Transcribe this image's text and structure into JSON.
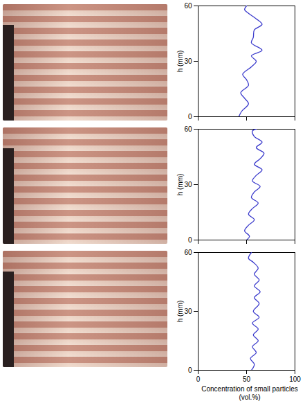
{
  "chart_data": [
    {
      "type": "line",
      "y_label": "h (mm)",
      "xlim": [
        0,
        100
      ],
      "xticks": [
        0,
        50,
        100
      ],
      "ylim": [
        0,
        60
      ],
      "yticks": [
        0,
        30,
        60
      ],
      "tick_labels": "y",
      "color": "#3b3bcc",
      "y": [
        0,
        3,
        7,
        10,
        13,
        17,
        20,
        23,
        27,
        30,
        33,
        36,
        40,
        43,
        47,
        50,
        53,
        56,
        58,
        60
      ],
      "x": [
        42,
        45,
        52,
        48,
        44,
        52,
        50,
        46,
        55,
        60,
        55,
        66,
        55,
        57,
        58,
        66,
        60,
        52,
        48,
        50
      ]
    },
    {
      "type": "line",
      "y_label": "h (mm)",
      "xlim": [
        0,
        100
      ],
      "xticks": [
        0,
        50,
        100
      ],
      "ylim": [
        0,
        60
      ],
      "yticks": [
        0,
        30,
        60
      ],
      "tick_labels": "y",
      "color": "#3b3bcc",
      "y": [
        0,
        2,
        5,
        8,
        11,
        14,
        17,
        20,
        23,
        26,
        29,
        32,
        35,
        38,
        41,
        44,
        47,
        50,
        53,
        56,
        59,
        60
      ],
      "x": [
        50,
        53,
        48,
        52,
        58,
        52,
        56,
        62,
        55,
        58,
        64,
        56,
        60,
        66,
        58,
        64,
        68,
        60,
        66,
        58,
        56,
        60
      ]
    },
    {
      "type": "line",
      "y_label": "h (mm)",
      "x_label": "Concentration of small particles (vol.%)",
      "xlim": [
        0,
        100
      ],
      "xticks": [
        0,
        50,
        100
      ],
      "ylim": [
        0,
        60
      ],
      "yticks": [
        0,
        30,
        60
      ],
      "color": "#3b3bcc",
      "y": [
        0,
        3,
        6,
        9,
        12,
        15,
        18,
        21,
        24,
        27,
        30,
        34,
        37,
        40,
        43,
        46,
        49,
        52,
        55,
        57,
        60
      ],
      "x": [
        55,
        58,
        54,
        60,
        56,
        62,
        57,
        62,
        56,
        63,
        57,
        63,
        58,
        64,
        58,
        63,
        58,
        62,
        57,
        52,
        55
      ]
    }
  ]
}
